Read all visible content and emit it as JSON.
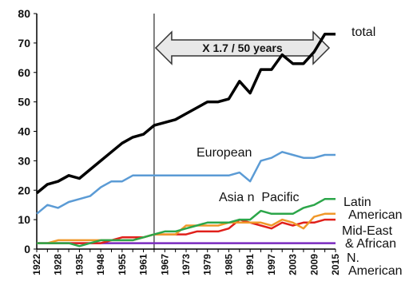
{
  "chart_data": {
    "type": "line",
    "x": [
      "1922",
      "1925",
      "1928",
      "1931",
      "1935",
      "1940",
      "1948",
      "1951",
      "1955",
      "1958",
      "1961",
      "1964",
      "1967",
      "1970",
      "1973",
      "1976",
      "1979",
      "1982",
      "1985",
      "1988",
      "1991",
      "1994",
      "1997",
      "2000",
      "2003",
      "2006",
      "2009",
      "2012",
      "2015"
    ],
    "x_tick_labels": [
      "1922",
      "1928",
      "1935",
      "1948",
      "1955",
      "1961",
      "1967",
      "1973",
      "1979",
      "1985",
      "1991",
      "1997",
      "2003",
      "2009",
      "2015"
    ],
    "ylim": [
      0,
      80
    ],
    "y_ticks": [
      "0",
      "10",
      "20",
      "30",
      "40",
      "50",
      "60",
      "70",
      "80"
    ],
    "series": [
      {
        "name": "total",
        "color": "#000000",
        "values": [
          19,
          22,
          23,
          25,
          24,
          27,
          30,
          33,
          36,
          38,
          39,
          42,
          43,
          44,
          46,
          48,
          50,
          50,
          51,
          57,
          53,
          61,
          61,
          66,
          63,
          63,
          67,
          73,
          73
        ]
      },
      {
        "name": "European",
        "color": "#5b9bd5",
        "values": [
          12,
          15,
          14,
          16,
          17,
          18,
          21,
          23,
          23,
          25,
          25,
          25,
          25,
          25,
          25,
          25,
          25,
          25,
          25,
          26,
          23,
          30,
          31,
          33,
          32,
          31,
          31,
          32,
          32
        ]
      },
      {
        "name": "Asia n  Pacific",
        "color": "#2ca64a",
        "values": [
          2,
          2,
          2,
          2,
          1,
          2,
          3,
          3,
          3,
          3,
          4,
          5,
          6,
          6,
          7,
          8,
          9,
          9,
          9,
          10,
          10,
          13,
          12,
          12,
          12,
          14,
          15,
          17,
          17
        ]
      },
      {
        "name": "Latin American",
        "color": "#f0982a",
        "values": [
          2,
          2,
          3,
          3,
          3,
          3,
          3,
          3,
          3,
          3,
          4,
          5,
          5,
          5,
          8,
          8,
          8,
          8,
          9,
          9,
          9,
          9,
          8,
          10,
          9,
          7,
          11,
          12,
          12
        ]
      },
      {
        "name": "Mid-East & African",
        "color": "#e0201b",
        "values": [
          2,
          2,
          2,
          2,
          2,
          2,
          2,
          3,
          4,
          4,
          4,
          5,
          5,
          5,
          5,
          6,
          6,
          6,
          7,
          10,
          9,
          8,
          7,
          9,
          8,
          9,
          9,
          10,
          10
        ]
      },
      {
        "name": "N. American",
        "color": "#7a2bbf",
        "values": [
          2,
          2,
          2,
          2,
          2,
          2,
          2,
          2,
          2,
          2,
          2,
          2,
          2,
          2,
          2,
          2,
          2,
          2,
          2,
          2,
          2,
          2,
          2,
          2,
          2,
          2,
          2,
          2,
          2
        ]
      }
    ],
    "labels": {
      "total": "total",
      "european": "European",
      "asia": "Asia n  Pacific",
      "latin_1": "Latin",
      "latin_2": "American",
      "mideast_1": "Mid-East",
      "mideast_2": "& African",
      "namerican_1": "N.",
      "namerican_2": "American"
    },
    "annotation": {
      "text": "X 1.7 / 50 years",
      "from": "1964",
      "to": "2015"
    },
    "divider_at": "1964",
    "grid": false
  }
}
